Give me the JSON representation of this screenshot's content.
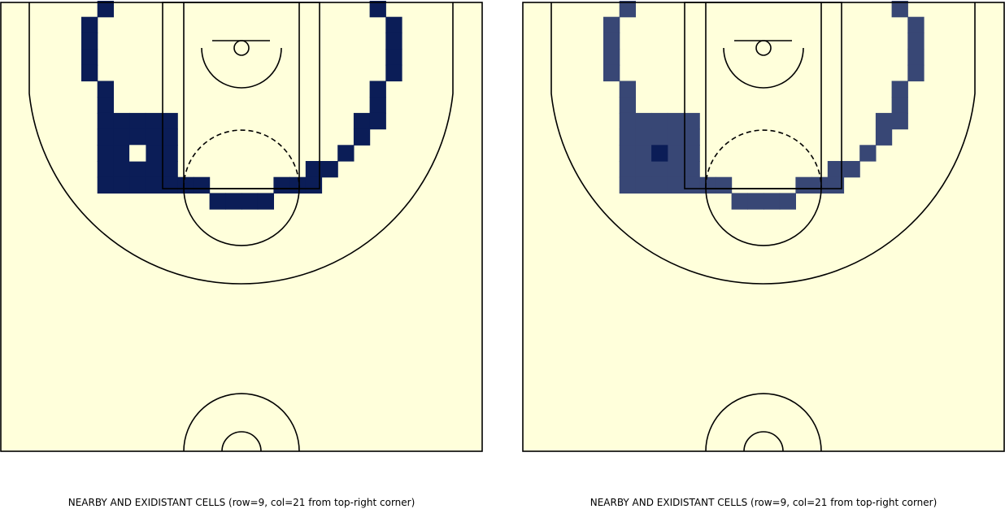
{
  "colors": {
    "court_background": "#ffffdb",
    "line": "#000000",
    "cell_left": "#0b1d57",
    "cell_right": "#384775",
    "highlight_right": "#0b1d57",
    "center_left": "#ffffdb"
  },
  "panels": [
    {
      "id": "left",
      "caption": "NEARBY AND EXIDISTANT CELLS (row=9, col=21 from top-right corner)",
      "cell_color": "#0b1d57",
      "center_color": "#ffffdb"
    },
    {
      "id": "right",
      "caption": "NEARBY AND EXIDISTANT CELLS (row=9, col=21 from top-right corner)",
      "cell_color": "#384775",
      "center_color": "#0b1d57"
    }
  ],
  "grid": {
    "rows": 28,
    "cols": 30,
    "highlighted_cells": [
      [
        0,
        6
      ],
      [
        0,
        23
      ],
      [
        1,
        5
      ],
      [
        1,
        24
      ],
      [
        2,
        5
      ],
      [
        2,
        24
      ],
      [
        3,
        5
      ],
      [
        3,
        24
      ],
      [
        4,
        5
      ],
      [
        4,
        24
      ],
      [
        5,
        6
      ],
      [
        5,
        23
      ],
      [
        6,
        6
      ],
      [
        6,
        23
      ],
      [
        7,
        6
      ],
      [
        7,
        7
      ],
      [
        7,
        8
      ],
      [
        7,
        9
      ],
      [
        7,
        10
      ],
      [
        7,
        22
      ],
      [
        7,
        23
      ],
      [
        8,
        6
      ],
      [
        8,
        7
      ],
      [
        8,
        8
      ],
      [
        8,
        9
      ],
      [
        8,
        10
      ],
      [
        8,
        22
      ],
      [
        9,
        6
      ],
      [
        9,
        7
      ],
      [
        9,
        9
      ],
      [
        9,
        10
      ],
      [
        9,
        21
      ],
      [
        10,
        6
      ],
      [
        10,
        7
      ],
      [
        10,
        8
      ],
      [
        10,
        9
      ],
      [
        10,
        10
      ],
      [
        10,
        19
      ],
      [
        10,
        20
      ],
      [
        11,
        6
      ],
      [
        11,
        7
      ],
      [
        11,
        8
      ],
      [
        11,
        9
      ],
      [
        11,
        10
      ],
      [
        11,
        11
      ],
      [
        11,
        12
      ],
      [
        11,
        17
      ],
      [
        11,
        18
      ],
      [
        11,
        19
      ],
      [
        12,
        13
      ],
      [
        12,
        14
      ],
      [
        12,
        15
      ],
      [
        12,
        16
      ]
    ],
    "center_cell": [
      9,
      8
    ]
  }
}
